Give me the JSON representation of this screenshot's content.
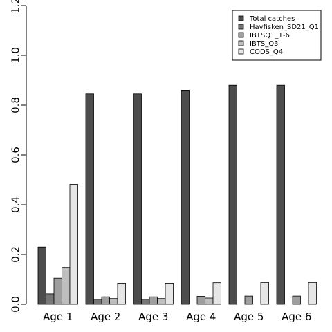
{
  "chart_data": {
    "type": "bar",
    "categories": [
      "Age 1",
      "Age 2",
      "Age 3",
      "Age 4",
      "Age 5",
      "Age 6"
    ],
    "series": [
      {
        "name": "Total catches",
        "color": "#4d4d4d",
        "values": [
          0.23,
          0.845,
          0.845,
          0.86,
          0.88,
          0.88
        ]
      },
      {
        "name": "Havfisken_SD21_Q1",
        "color": "#777777",
        "values": [
          0.042,
          0.02,
          0.02,
          0.0,
          0.0,
          0.0
        ]
      },
      {
        "name": "IBTSQ1_1-6",
        "color": "#9e9e9e",
        "values": [
          0.105,
          0.03,
          0.03,
          0.032,
          0.033,
          0.033
        ]
      },
      {
        "name": "IBTS_Q3",
        "color": "#bebebe",
        "values": [
          0.148,
          0.023,
          0.023,
          0.025,
          0.0,
          0.0
        ]
      },
      {
        "name": "CODS_Q4",
        "color": "#e6e6e6",
        "values": [
          0.482,
          0.085,
          0.085,
          0.087,
          0.088,
          0.088
        ]
      }
    ],
    "yticks": [
      "0.0",
      "0.2",
      "0.4",
      "0.6",
      "0.8",
      "1.0",
      "1.2"
    ],
    "ylim": [
      0,
      1.2
    ],
    "title": "",
    "xlabel": "",
    "ylabel": "",
    "grid": false,
    "legend_position": "top-right"
  }
}
